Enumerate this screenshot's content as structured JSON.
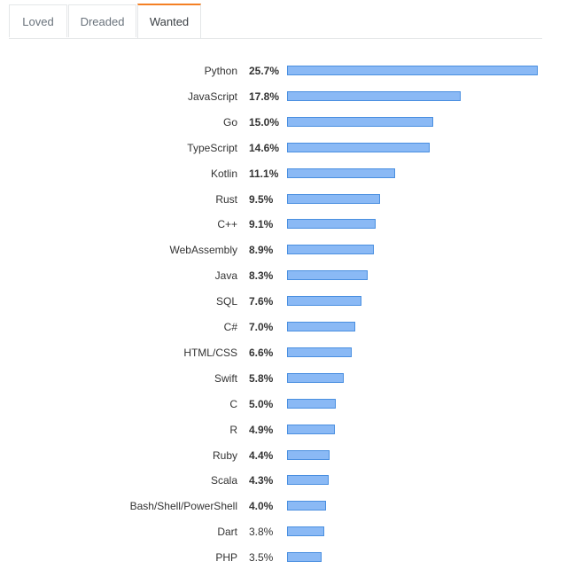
{
  "tabs": [
    {
      "label": "Loved"
    },
    {
      "label": "Dreaded"
    },
    {
      "label": "Wanted",
      "active": true
    }
  ],
  "colors": {
    "bar": "#8ab9f5",
    "bar_border": "#4a8fe0",
    "active_tab": "#f48024"
  },
  "chart_data": {
    "type": "bar",
    "orientation": "horizontal",
    "title": "Wanted",
    "unit": "%",
    "categories": [
      "Python",
      "JavaScript",
      "Go",
      "TypeScript",
      "Kotlin",
      "Rust",
      "C++",
      "WebAssembly",
      "Java",
      "SQL",
      "C#",
      "HTML/CSS",
      "Swift",
      "C",
      "R",
      "Ruby",
      "Scala",
      "Bash/Shell/PowerShell",
      "Dart",
      "PHP"
    ],
    "values": [
      25.7,
      17.8,
      15.0,
      14.6,
      11.1,
      9.5,
      9.1,
      8.9,
      8.3,
      7.6,
      7.0,
      6.6,
      5.8,
      5.0,
      4.9,
      4.4,
      4.3,
      4.0,
      3.8,
      3.5
    ],
    "labels": [
      "25.7%",
      "17.8%",
      "15.0%",
      "14.6%",
      "11.1%",
      "9.5%",
      "9.1%",
      "8.9%",
      "8.3%",
      "7.6%",
      "7.0%",
      "6.6%",
      "5.8%",
      "5.0%",
      "4.9%",
      "4.4%",
      "4.3%",
      "4.0%",
      "3.8%",
      "3.5%"
    ]
  }
}
